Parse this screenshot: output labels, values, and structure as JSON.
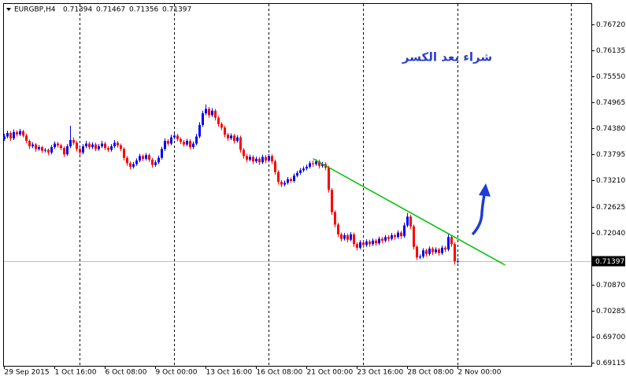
{
  "chart_data": {
    "type": "candlestick",
    "symbol": "EURGBP,H4",
    "annotation": "شراء بعد الكسر",
    "ylim": [
      0.69044,
      0.77198
    ],
    "yticks": [
      {
        "value": 0.7672,
        "label": "0.76720"
      },
      0.76135,
      {
        "value": 0.7555,
        "label": "0.75550"
      },
      0.74965,
      {
        "value": 0.7438,
        "label": "0.74380"
      },
      0.73795,
      {
        "value": 0.7321,
        "label": "0.73210"
      },
      0.72625,
      {
        "value": 0.7204,
        "label": "0.72040"
      },
      {
        "value": 0.7087,
        "label": "0.70870"
      },
      0.70285,
      {
        "value": 0.697,
        "label": "0.69700"
      },
      0.69115
    ],
    "up_color": "#0000ff",
    "down_color": "#ff0000",
    "trendline": {
      "color": "#00c000",
      "x": [
        98,
        159
      ],
      "y": [
        0.737,
        0.7131
      ]
    },
    "x": [
      "29 Sep 2015",
      null,
      null,
      null,
      null,
      null,
      null,
      null,
      null,
      null,
      null,
      null,
      null,
      null,
      null,
      null,
      "1 Oct 16:00",
      null,
      null,
      null,
      null,
      null,
      null,
      null,
      null,
      null,
      null,
      null,
      null,
      null,
      null,
      null,
      "6 Oct 08:00",
      null,
      null,
      null,
      null,
      null,
      null,
      null,
      null,
      null,
      null,
      null,
      null,
      null,
      null,
      null,
      "9 Oct 00:00",
      null,
      null,
      null,
      null,
      null,
      null,
      null,
      null,
      null,
      null,
      null,
      null,
      null,
      null,
      null,
      "13 Oct 16:00",
      null,
      null,
      null,
      null,
      null,
      null,
      null,
      null,
      null,
      null,
      null,
      null,
      null,
      null,
      null,
      "16 Oct 08:00",
      null,
      null,
      null,
      null,
      null,
      null,
      null,
      null,
      null,
      null,
      null,
      null,
      null,
      null,
      null,
      "21 Oct 00:00",
      null,
      null,
      null,
      null,
      null,
      null,
      null,
      null,
      null,
      null,
      null,
      null,
      null,
      null,
      null,
      "23 Oct 16:00",
      null,
      null,
      null,
      null,
      null,
      null,
      null,
      null,
      null,
      null,
      null,
      null,
      null,
      null,
      null,
      "28 Oct 08:00",
      null,
      null,
      null,
      null,
      null,
      null,
      null,
      null,
      null,
      null,
      null,
      null,
      null,
      null,
      null,
      "2 Nov 00:00"
    ],
    "candles": [
      [
        0.7414,
        0.7426,
        0.741,
        0.742
      ],
      [
        0.742,
        0.7433,
        0.7416,
        0.7428
      ],
      [
        0.7428,
        0.7432,
        0.741,
        0.7416
      ],
      [
        0.7416,
        0.7436,
        0.7412,
        0.743
      ],
      [
        0.743,
        0.7434,
        0.742,
        0.7425
      ],
      [
        0.7425,
        0.7437,
        0.7421,
        0.7432
      ],
      [
        0.7432,
        0.7435,
        0.7418,
        0.7422
      ],
      [
        0.7422,
        0.7426,
        0.7405,
        0.741
      ],
      [
        0.741,
        0.7413,
        0.7392,
        0.7398
      ],
      [
        0.7398,
        0.7407,
        0.7394,
        0.7402
      ],
      [
        0.7402,
        0.7405,
        0.7386,
        0.7392
      ],
      [
        0.7392,
        0.7401,
        0.7388,
        0.7396
      ],
      [
        0.7396,
        0.7399,
        0.7383,
        0.7388
      ],
      [
        0.7388,
        0.7394,
        0.7384,
        0.739
      ],
      [
        0.739,
        0.7393,
        0.7378,
        0.7384
      ],
      [
        0.7384,
        0.7401,
        0.738,
        0.7396
      ],
      [
        0.7396,
        0.7409,
        0.7392,
        0.7404
      ],
      [
        0.7404,
        0.7408,
        0.7395,
        0.74
      ],
      [
        0.74,
        0.7404,
        0.7389,
        0.7394
      ],
      [
        0.7394,
        0.7398,
        0.7374,
        0.738
      ],
      [
        0.738,
        0.7403,
        0.7376,
        0.7398
      ],
      [
        0.7398,
        0.7444,
        0.7394,
        0.7412
      ],
      [
        0.7412,
        0.7418,
        0.7401,
        0.7406
      ],
      [
        0.7406,
        0.741,
        0.7386,
        0.7392
      ],
      [
        0.7392,
        0.7396,
        0.7378,
        0.7384
      ],
      [
        0.7384,
        0.7403,
        0.738,
        0.7398
      ],
      [
        0.7398,
        0.741,
        0.7394,
        0.7404
      ],
      [
        0.7404,
        0.7408,
        0.7391,
        0.7396
      ],
      [
        0.7396,
        0.7407,
        0.7392,
        0.7402
      ],
      [
        0.7402,
        0.7406,
        0.7387,
        0.7392
      ],
      [
        0.7392,
        0.7403,
        0.7388,
        0.7398
      ],
      [
        0.7398,
        0.741,
        0.7394,
        0.7404
      ],
      [
        0.7404,
        0.7408,
        0.7389,
        0.7394
      ],
      [
        0.7394,
        0.7398,
        0.7385,
        0.739
      ],
      [
        0.739,
        0.7403,
        0.7386,
        0.7398
      ],
      [
        0.7398,
        0.7412,
        0.7394,
        0.7406
      ],
      [
        0.7406,
        0.741,
        0.7395,
        0.74
      ],
      [
        0.74,
        0.7404,
        0.7387,
        0.7392
      ],
      [
        0.7392,
        0.7396,
        0.7366,
        0.7372
      ],
      [
        0.7372,
        0.7376,
        0.7354,
        0.736
      ],
      [
        0.736,
        0.7364,
        0.7346,
        0.7352
      ],
      [
        0.7352,
        0.7363,
        0.7348,
        0.7358
      ],
      [
        0.7358,
        0.7371,
        0.7354,
        0.7366
      ],
      [
        0.7366,
        0.7381,
        0.7362,
        0.7376
      ],
      [
        0.7376,
        0.738,
        0.7365,
        0.737
      ],
      [
        0.737,
        0.7383,
        0.7366,
        0.7378
      ],
      [
        0.7378,
        0.7382,
        0.7363,
        0.7368
      ],
      [
        0.7368,
        0.7372,
        0.735,
        0.7356
      ],
      [
        0.7356,
        0.7367,
        0.7352,
        0.7362
      ],
      [
        0.7362,
        0.7377,
        0.7358,
        0.7372
      ],
      [
        0.7372,
        0.7397,
        0.7368,
        0.7392
      ],
      [
        0.7392,
        0.7416,
        0.7388,
        0.741
      ],
      [
        0.741,
        0.7414,
        0.7399,
        0.7404
      ],
      [
        0.7404,
        0.7424,
        0.74,
        0.7418
      ],
      [
        0.7418,
        0.7428,
        0.7414,
        0.7422
      ],
      [
        0.7422,
        0.7426,
        0.7409,
        0.7414
      ],
      [
        0.7414,
        0.7418,
        0.7403,
        0.7408
      ],
      [
        0.7408,
        0.7412,
        0.7397,
        0.7402
      ],
      [
        0.7402,
        0.7415,
        0.7398,
        0.741
      ],
      [
        0.741,
        0.7414,
        0.7391,
        0.7396
      ],
      [
        0.7396,
        0.7409,
        0.7392,
        0.7404
      ],
      [
        0.7404,
        0.7426,
        0.74,
        0.742
      ],
      [
        0.742,
        0.7452,
        0.7416,
        0.7446
      ],
      [
        0.7446,
        0.7478,
        0.7442,
        0.7472
      ],
      [
        0.7472,
        0.7492,
        0.7468,
        0.7482
      ],
      [
        0.7482,
        0.7486,
        0.7462,
        0.7468
      ],
      [
        0.7468,
        0.7484,
        0.7464,
        0.7478
      ],
      [
        0.7478,
        0.7482,
        0.7456,
        0.7462
      ],
      [
        0.7462,
        0.7466,
        0.7442,
        0.7448
      ],
      [
        0.7448,
        0.7452,
        0.7434,
        0.744
      ],
      [
        0.744,
        0.7444,
        0.7418,
        0.7424
      ],
      [
        0.7424,
        0.7428,
        0.741,
        0.7416
      ],
      [
        0.7416,
        0.7427,
        0.7412,
        0.7422
      ],
      [
        0.7422,
        0.7426,
        0.7404,
        0.741
      ],
      [
        0.741,
        0.7423,
        0.7406,
        0.7418
      ],
      [
        0.7418,
        0.7422,
        0.7384,
        0.739
      ],
      [
        0.739,
        0.7394,
        0.737,
        0.7376
      ],
      [
        0.7376,
        0.738,
        0.7362,
        0.7368
      ],
      [
        0.7368,
        0.7379,
        0.7364,
        0.7374
      ],
      [
        0.7374,
        0.7378,
        0.7358,
        0.7364
      ],
      [
        0.7364,
        0.7375,
        0.736,
        0.737
      ],
      [
        0.737,
        0.7374,
        0.7356,
        0.7362
      ],
      [
        0.7362,
        0.7379,
        0.7358,
        0.7374
      ],
      [
        0.7374,
        0.7378,
        0.736,
        0.7366
      ],
      [
        0.7366,
        0.7381,
        0.7362,
        0.7376
      ],
      [
        0.7376,
        0.738,
        0.7358,
        0.7364
      ],
      [
        0.7364,
        0.7368,
        0.7334,
        0.734
      ],
      [
        0.734,
        0.7344,
        0.7312,
        0.7318
      ],
      [
        0.7318,
        0.7322,
        0.7306,
        0.7312
      ],
      [
        0.7312,
        0.7321,
        0.7308,
        0.7316
      ],
      [
        0.7316,
        0.7329,
        0.7312,
        0.7324
      ],
      [
        0.7324,
        0.7328,
        0.7316,
        0.732
      ],
      [
        0.732,
        0.7337,
        0.7316,
        0.7332
      ],
      [
        0.7332,
        0.7343,
        0.7328,
        0.7338
      ],
      [
        0.7338,
        0.7349,
        0.7334,
        0.7344
      ],
      [
        0.7344,
        0.7353,
        0.734,
        0.7348
      ],
      [
        0.7348,
        0.7357,
        0.7344,
        0.7352
      ],
      [
        0.7352,
        0.7365,
        0.7348,
        0.736
      ],
      [
        0.736,
        0.7366,
        0.7352,
        0.7358
      ],
      [
        0.7358,
        0.7369,
        0.7354,
        0.7364
      ],
      [
        0.7364,
        0.7368,
        0.7348,
        0.7354
      ],
      [
        0.7354,
        0.7363,
        0.735,
        0.7358
      ],
      [
        0.7358,
        0.7362,
        0.7344,
        0.735
      ],
      [
        0.735,
        0.7354,
        0.7294,
        0.73
      ],
      [
        0.73,
        0.7304,
        0.7244,
        0.725
      ],
      [
        0.725,
        0.7254,
        0.7216,
        0.7222
      ],
      [
        0.7222,
        0.7226,
        0.7194,
        0.72
      ],
      [
        0.72,
        0.7204,
        0.7184,
        0.719
      ],
      [
        0.719,
        0.7203,
        0.7186,
        0.7198
      ],
      [
        0.7198,
        0.7202,
        0.7182,
        0.7188
      ],
      [
        0.7188,
        0.7205,
        0.7184,
        0.72
      ],
      [
        0.72,
        0.7204,
        0.7172,
        0.7178
      ],
      [
        0.7178,
        0.7182,
        0.7164,
        0.717
      ],
      [
        0.717,
        0.7187,
        0.7166,
        0.7182
      ],
      [
        0.7182,
        0.7186,
        0.717,
        0.7176
      ],
      [
        0.7176,
        0.7189,
        0.7172,
        0.7184
      ],
      [
        0.7184,
        0.7188,
        0.7172,
        0.7178
      ],
      [
        0.7178,
        0.7191,
        0.7174,
        0.7186
      ],
      [
        0.7186,
        0.719,
        0.7174,
        0.718
      ],
      [
        0.718,
        0.7195,
        0.7176,
        0.719
      ],
      [
        0.719,
        0.7194,
        0.718,
        0.7186
      ],
      [
        0.7186,
        0.7199,
        0.7182,
        0.7194
      ],
      [
        0.7194,
        0.7198,
        0.7184,
        0.719
      ],
      [
        0.719,
        0.7203,
        0.7186,
        0.7198
      ],
      [
        0.7198,
        0.7202,
        0.7188,
        0.7194
      ],
      [
        0.7194,
        0.7209,
        0.719,
        0.7204
      ],
      [
        0.7204,
        0.7208,
        0.719,
        0.7196
      ],
      [
        0.7196,
        0.7226,
        0.7192,
        0.722
      ],
      [
        0.722,
        0.7248,
        0.7216,
        0.724
      ],
      [
        0.724,
        0.7244,
        0.7212,
        0.7218
      ],
      [
        0.7218,
        0.7222,
        0.7166,
        0.7172
      ],
      [
        0.7172,
        0.7176,
        0.7142,
        0.7148
      ],
      [
        0.7148,
        0.7155,
        0.7144,
        0.715
      ],
      [
        0.715,
        0.7169,
        0.7146,
        0.7164
      ],
      [
        0.7164,
        0.7168,
        0.715,
        0.7156
      ],
      [
        0.7156,
        0.7173,
        0.7152,
        0.7168
      ],
      [
        0.7168,
        0.7172,
        0.7154,
        0.716
      ],
      [
        0.716,
        0.7171,
        0.7156,
        0.7166
      ],
      [
        0.7166,
        0.717,
        0.7152,
        0.7158
      ],
      [
        0.7158,
        0.7175,
        0.7154,
        0.717
      ],
      [
        0.717,
        0.7174,
        0.716,
        0.7166
      ],
      [
        0.7166,
        0.72,
        0.7162,
        0.7194
      ],
      [
        0.7194,
        0.7198,
        0.7172,
        0.7178
      ],
      [
        0.7178,
        0.7182,
        0.7132,
        0.71394
      ],
      [
        0.71394,
        0.71467,
        0.71356,
        0.71397
      ]
    ]
  }
}
